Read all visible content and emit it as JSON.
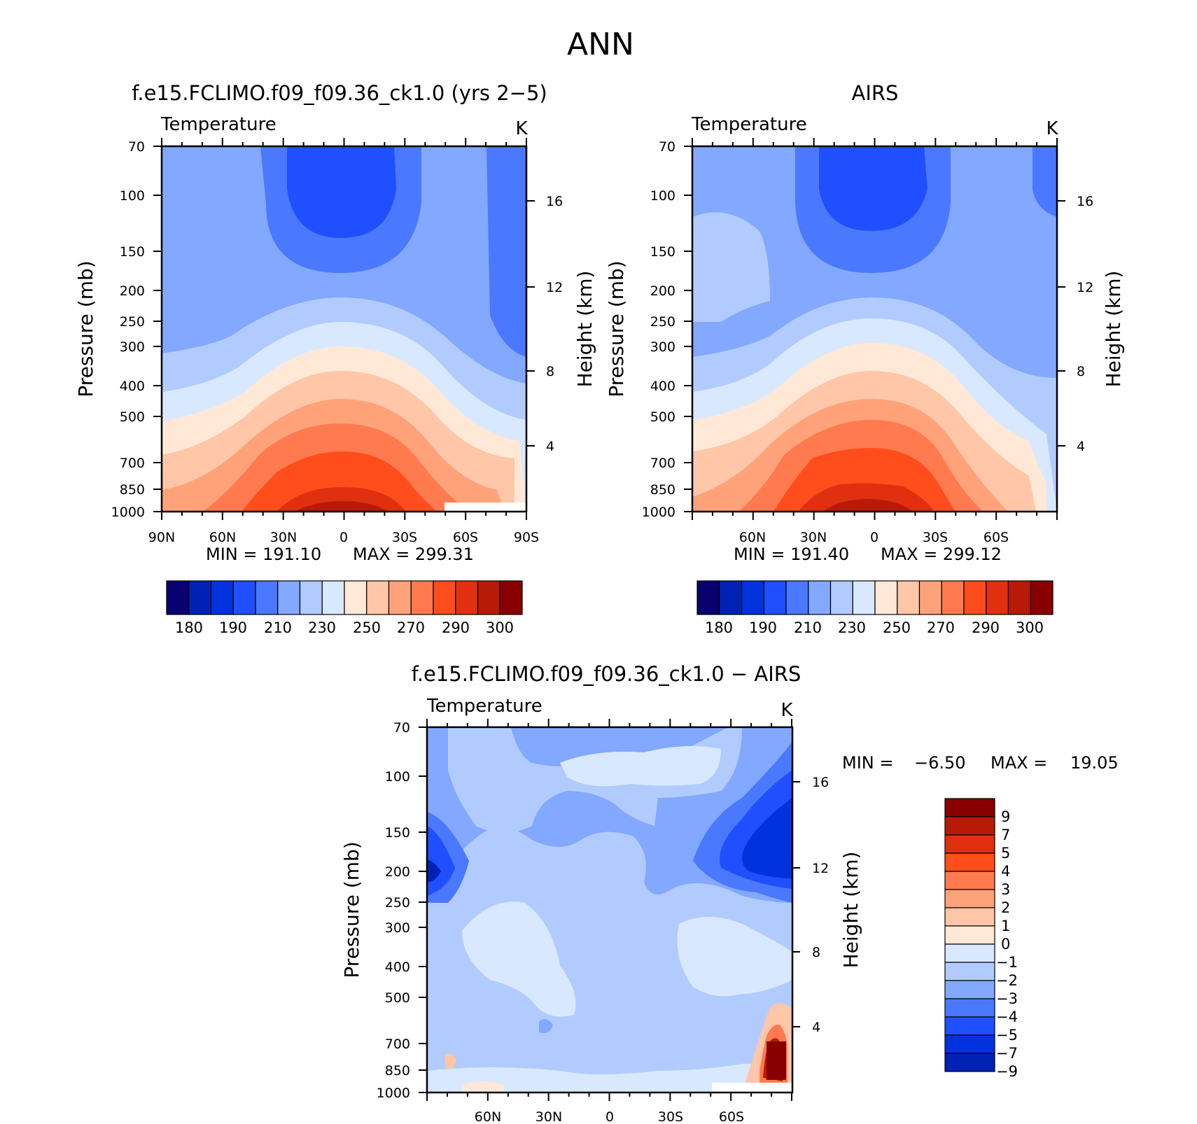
{
  "figure_title": "ANN",
  "palette": [
    "#08006e",
    "#0022b4",
    "#0033dd",
    "#1f4fff",
    "#4a78ff",
    "#82a8ff",
    "#b2cbff",
    "#d8e8ff",
    "#ffe9d6",
    "#ffc6a8",
    "#ffa27a",
    "#ff7b4f",
    "#ff4e1c",
    "#e03010",
    "#b81a08",
    "#880000"
  ],
  "chart_data": [
    {
      "type": "heatmap",
      "title": "f.e15.FCLIMO.f09_f09.36_ck1.0 (yrs 2-5)",
      "variable_label": "Temperature",
      "units_label": "K",
      "ylabel": "Pressure (mb)",
      "y2label": "Height (km)",
      "xticks": [
        "90N",
        "60N",
        "30N",
        "0",
        "30S",
        "60S",
        "90S"
      ],
      "yticks": [
        "70",
        "100",
        "150",
        "200",
        "250",
        "300",
        "400",
        "500",
        "700",
        "850",
        "1000"
      ],
      "y2ticks": [
        "16",
        "12",
        "8",
        "4"
      ],
      "min_label": "MIN = 191.10",
      "max_label": "MAX = 299.31",
      "min": 191.1,
      "max": 299.31,
      "colorbar_labels": [
        "180",
        "190",
        "210",
        "230",
        "250",
        "270",
        "290",
        "300"
      ]
    },
    {
      "type": "heatmap",
      "title": "AIRS",
      "variable_label": "Temperature",
      "units_label": "K",
      "ylabel": "Pressure (mb)",
      "y2label": "Height (km)",
      "xticks": [
        "60N",
        "30N",
        "0",
        "30S",
        "60S"
      ],
      "yticks": [
        "70",
        "100",
        "150",
        "200",
        "250",
        "300",
        "400",
        "500",
        "700",
        "850",
        "1000"
      ],
      "y2ticks": [
        "16",
        "12",
        "8",
        "4"
      ],
      "min_label": "MIN = 191.40",
      "max_label": "MAX = 299.12",
      "min": 191.4,
      "max": 299.12,
      "colorbar_labels": [
        "180",
        "190",
        "210",
        "230",
        "250",
        "270",
        "290",
        "300"
      ]
    },
    {
      "type": "heatmap",
      "title": "f.e15.FCLIMO.f09_f09.36_ck1.0 - AIRS",
      "variable_label": "Temperature",
      "units_label": "K",
      "ylabel": "Pressure (mb)",
      "y2label": "Height (km)",
      "xticks": [
        "60N",
        "30N",
        "0",
        "30S",
        "60S"
      ],
      "yticks": [
        "70",
        "100",
        "150",
        "200",
        "250",
        "300",
        "400",
        "500",
        "700",
        "850",
        "1000"
      ],
      "y2ticks": [
        "16",
        "12",
        "8",
        "4"
      ],
      "min_label": "MIN =",
      "min_value": "-6.50",
      "max_label": "MAX =",
      "max_value": "19.05",
      "min": -6.5,
      "max": 19.05,
      "colorbar_labels": [
        "9",
        "7",
        "5",
        "4",
        "3",
        "2",
        "1",
        "0",
        "-1",
        "-2",
        "-3",
        "-4",
        "-5",
        "-7",
        "-9"
      ]
    }
  ]
}
